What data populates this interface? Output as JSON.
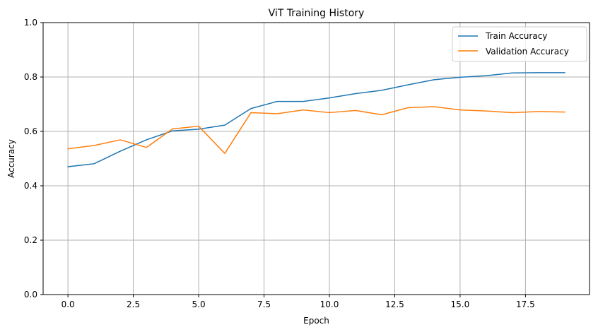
{
  "chart_data": {
    "type": "line",
    "title": "ViT Training History",
    "xlabel": "Epoch",
    "ylabel": "Accuracy",
    "xlim": [
      -0.95,
      19.95
    ],
    "ylim": [
      0,
      1.0
    ],
    "xticks": [
      0.0,
      2.5,
      5.0,
      7.5,
      10.0,
      12.5,
      15.0,
      17.5
    ],
    "xtick_labels": [
      "0.0",
      "2.5",
      "5.0",
      "7.5",
      "10.0",
      "12.5",
      "15.0",
      "17.5"
    ],
    "yticks": [
      0.0,
      0.2,
      0.4,
      0.6,
      0.8,
      1.0
    ],
    "ytick_labels": [
      "0.0",
      "0.2",
      "0.4",
      "0.6",
      "0.8",
      "1.0"
    ],
    "grid": true,
    "legend_position": "top-right",
    "x": [
      0,
      1,
      2,
      3,
      4,
      5,
      6,
      7,
      8,
      9,
      10,
      11,
      12,
      13,
      14,
      15,
      16,
      17,
      18,
      19
    ],
    "series": [
      {
        "name": "Train Accuracy",
        "color": "#1f77b4",
        "values": [
          0.47,
          0.481,
          0.527,
          0.569,
          0.602,
          0.608,
          0.623,
          0.684,
          0.71,
          0.71,
          0.723,
          0.739,
          0.751,
          0.771,
          0.79,
          0.799,
          0.805,
          0.815,
          0.816,
          0.816
        ]
      },
      {
        "name": "Validation Accuracy",
        "color": "#ff7f0e",
        "values": [
          0.536,
          0.548,
          0.569,
          0.541,
          0.609,
          0.619,
          0.519,
          0.669,
          0.665,
          0.679,
          0.669,
          0.677,
          0.661,
          0.687,
          0.691,
          0.679,
          0.675,
          0.669,
          0.673,
          0.671
        ]
      }
    ]
  }
}
